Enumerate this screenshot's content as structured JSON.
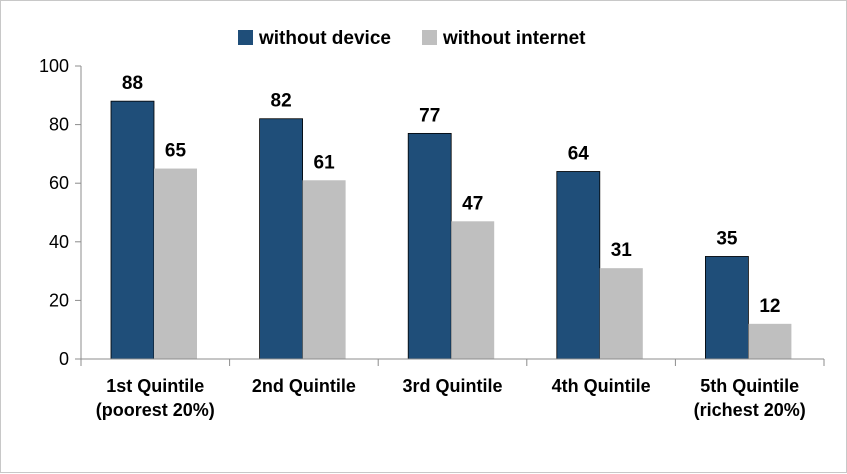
{
  "chart_data": {
    "type": "bar",
    "categories": [
      [
        "1st Quintile",
        "(poorest 20%)"
      ],
      [
        "2nd Quintile"
      ],
      [
        "3rd Quintile"
      ],
      [
        "4th Quintile"
      ],
      [
        "5th Quintile",
        "(richest 20%)"
      ]
    ],
    "series": [
      {
        "name": "without device",
        "color": "#1f4e79",
        "values": [
          88,
          82,
          77,
          64,
          35
        ]
      },
      {
        "name": "without internet",
        "color": "#bfbfbf",
        "values": [
          65,
          61,
          47,
          31,
          12
        ]
      }
    ],
    "yticks": [
      0,
      20,
      40,
      60,
      80,
      100
    ],
    "ylim": [
      0,
      100
    ],
    "grid": false,
    "legend_position": "top"
  }
}
